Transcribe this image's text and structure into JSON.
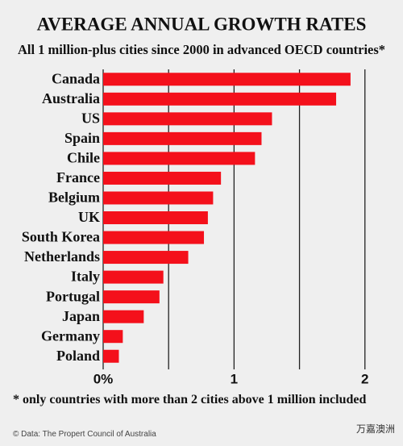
{
  "chart_data": {
    "type": "barh",
    "title": "AVERAGE ANNUAL GROWTH RATES",
    "subtitle": "All 1 million-plus cities since 2000 in advanced OECD countries*",
    "categories": [
      "Canada",
      "Australia",
      "US",
      "Spain",
      "Chile",
      "France",
      "Belgium",
      "UK",
      "South Korea",
      "Netherlands",
      "Italy",
      "Portugal",
      "Japan",
      "Germany",
      "Poland"
    ],
    "values": [
      1.89,
      1.78,
      1.29,
      1.21,
      1.16,
      0.9,
      0.84,
      0.8,
      0.77,
      0.65,
      0.46,
      0.43,
      0.31,
      0.15,
      0.12
    ],
    "color": "#f4101b",
    "xlim": [
      0,
      2.1
    ],
    "xticks": [
      {
        "value": 0,
        "label": "0%"
      },
      1,
      2
    ],
    "minor_xticks": [
      0.5,
      1.5
    ],
    "grid": true,
    "footnote": "* only countries with more than 2 cities above 1 million included",
    "source": "© Data: The Propert Council of Australia",
    "watermark": "万嘉澳洲"
  }
}
